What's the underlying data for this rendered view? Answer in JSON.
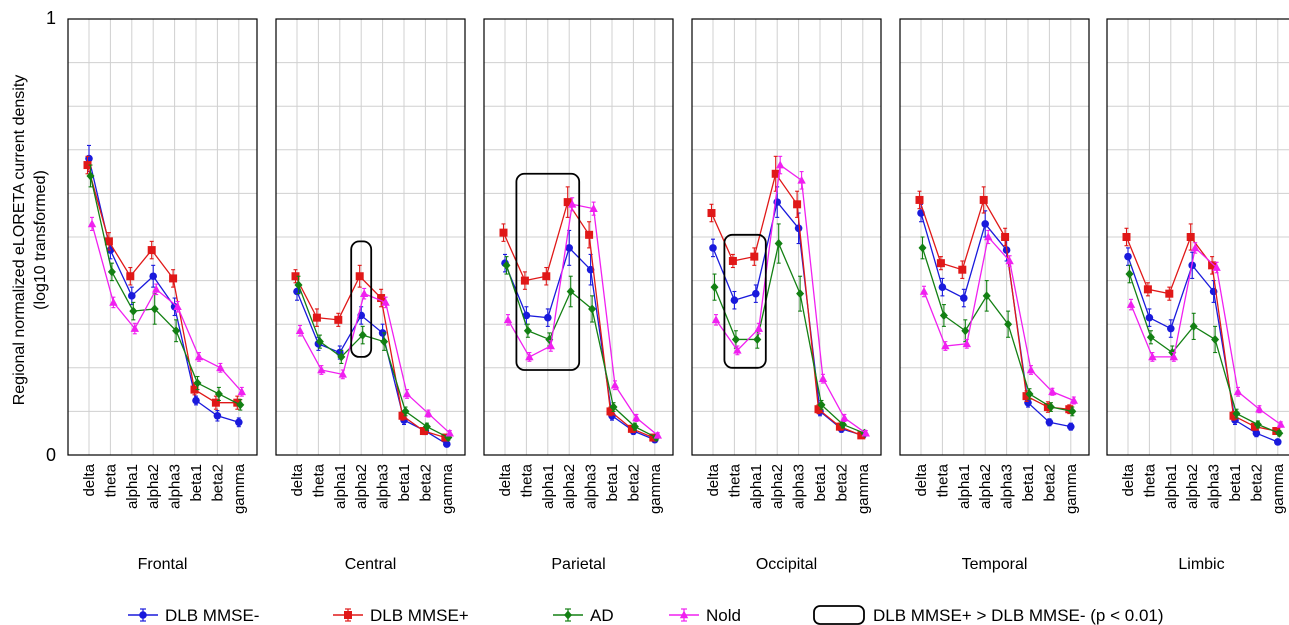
{
  "chart_data": {
    "type": "line",
    "ylabel_line1": "Regional normalized eLORETA current density",
    "ylabel_line2": "(log10 transformed)",
    "ylim": [
      0,
      1
    ],
    "yticks": [
      "0",
      "1"
    ],
    "grid": true,
    "categories": [
      "delta",
      "theta",
      "alpha1",
      "alpha2",
      "alpha3",
      "beta1",
      "beta2",
      "gamma"
    ],
    "legend_placement": "bottom",
    "legend": {
      "box_label": "DLB MMSE+ > DLB MMSE- (p < 0.01)"
    },
    "series_styles": [
      {
        "name": "DLB MMSE-",
        "color": "#1a1adc",
        "marker": "circle"
      },
      {
        "name": "DLB MMSE+",
        "color": "#e01818",
        "marker": "square"
      },
      {
        "name": "AD",
        "color": "#138013",
        "marker": "diamond"
      },
      {
        "name": "Nold",
        "color": "#f020f0",
        "marker": "triangle"
      }
    ],
    "panels": [
      {
        "region": "Frontal",
        "series": [
          {
            "name": "DLB MMSE-",
            "values": [
              0.68,
              0.47,
              0.365,
              0.41,
              0.34,
              0.125,
              0.09,
              0.075
            ],
            "errors": [
              0.03,
              0.02,
              0.02,
              0.025,
              0.02,
              0.01,
              0.012,
              0.01
            ]
          },
          {
            "name": "DLB MMSE+",
            "values": [
              0.665,
              0.49,
              0.41,
              0.47,
              0.405,
              0.15,
              0.12,
              0.12
            ],
            "errors": [
              0.02,
              0.02,
              0.02,
              0.02,
              0.02,
              0.012,
              0.015,
              0.015
            ]
          },
          {
            "name": "AD",
            "values": [
              0.64,
              0.42,
              0.33,
              0.335,
              0.285,
              0.165,
              0.14,
              0.115
            ],
            "errors": [
              0.025,
              0.02,
              0.02,
              0.035,
              0.025,
              0.015,
              0.015,
              0.012
            ]
          },
          {
            "name": "Nold",
            "values": [
              0.53,
              0.35,
              0.29,
              0.38,
              0.34,
              0.225,
              0.2,
              0.145
            ],
            "errors": [
              0.015,
              0.012,
              0.012,
              0.012,
              0.012,
              0.01,
              0.01,
              0.01
            ]
          }
        ]
      },
      {
        "region": "Central",
        "series": [
          {
            "name": "DLB MMSE-",
            "values": [
              0.375,
              0.255,
              0.235,
              0.32,
              0.28,
              0.08,
              0.055,
              0.025
            ],
            "errors": [
              0.02,
              0.015,
              0.015,
              0.02,
              0.02,
              0.01,
              0.008,
              0.006
            ]
          },
          {
            "name": "DLB MMSE+",
            "values": [
              0.41,
              0.315,
              0.31,
              0.41,
              0.36,
              0.09,
              0.055,
              0.04
            ],
            "errors": [
              0.015,
              0.02,
              0.015,
              0.025,
              0.02,
              0.01,
              0.008,
              0.006
            ]
          },
          {
            "name": "AD",
            "values": [
              0.39,
              0.26,
              0.225,
              0.275,
              0.26,
              0.1,
              0.065,
              0.04
            ],
            "errors": [
              0.02,
              0.015,
              0.015,
              0.02,
              0.02,
              0.01,
              0.008,
              0.006
            ]
          },
          {
            "name": "Nold",
            "values": [
              0.285,
              0.195,
              0.185,
              0.37,
              0.35,
              0.14,
              0.095,
              0.05
            ],
            "errors": [
              0.012,
              0.01,
              0.01,
              0.012,
              0.012,
              0.01,
              0.008,
              0.006
            ]
          }
        ]
      },
      {
        "region": "Parietal",
        "series": [
          {
            "name": "DLB MMSE-",
            "values": [
              0.44,
              0.32,
              0.315,
              0.475,
              0.425,
              0.09,
              0.055,
              0.035
            ],
            "errors": [
              0.02,
              0.02,
              0.02,
              0.04,
              0.035,
              0.01,
              0.008,
              0.006
            ]
          },
          {
            "name": "DLB MMSE+",
            "values": [
              0.51,
              0.4,
              0.41,
              0.58,
              0.505,
              0.1,
              0.06,
              0.04
            ],
            "errors": [
              0.02,
              0.02,
              0.02,
              0.035,
              0.03,
              0.01,
              0.008,
              0.006
            ]
          },
          {
            "name": "AD",
            "values": [
              0.435,
              0.285,
              0.265,
              0.375,
              0.335,
              0.11,
              0.065,
              0.04
            ],
            "errors": [
              0.02,
              0.015,
              0.015,
              0.035,
              0.03,
              0.01,
              0.008,
              0.006
            ]
          },
          {
            "name": "Nold",
            "values": [
              0.31,
              0.225,
              0.25,
              0.575,
              0.565,
              0.16,
              0.085,
              0.045
            ],
            "errors": [
              0.012,
              0.01,
              0.012,
              0.015,
              0.015,
              0.01,
              0.008,
              0.006
            ]
          }
        ]
      },
      {
        "region": "Occipital",
        "series": [
          {
            "name": "DLB MMSE-",
            "values": [
              0.475,
              0.355,
              0.37,
              0.58,
              0.52,
              0.1,
              0.06,
              0.045
            ],
            "errors": [
              0.02,
              0.02,
              0.02,
              0.035,
              0.035,
              0.01,
              0.008,
              0.006
            ]
          },
          {
            "name": "DLB MMSE+",
            "values": [
              0.555,
              0.445,
              0.455,
              0.645,
              0.575,
              0.105,
              0.065,
              0.045
            ],
            "errors": [
              0.02,
              0.015,
              0.02,
              0.04,
              0.03,
              0.01,
              0.008,
              0.006
            ]
          },
          {
            "name": "AD",
            "values": [
              0.385,
              0.265,
              0.265,
              0.485,
              0.37,
              0.115,
              0.07,
              0.05
            ],
            "errors": [
              0.03,
              0.02,
              0.02,
              0.045,
              0.04,
              0.01,
              0.008,
              0.006
            ]
          },
          {
            "name": "Nold",
            "values": [
              0.31,
              0.24,
              0.29,
              0.665,
              0.63,
              0.175,
              0.085,
              0.05
            ],
            "errors": [
              0.012,
              0.01,
              0.012,
              0.02,
              0.02,
              0.01,
              0.008,
              0.006
            ]
          }
        ]
      },
      {
        "region": "Temporal",
        "series": [
          {
            "name": "DLB MMSE-",
            "values": [
              0.555,
              0.385,
              0.36,
              0.53,
              0.47,
              0.12,
              0.075,
              0.065
            ],
            "errors": [
              0.02,
              0.02,
              0.02,
              0.03,
              0.025,
              0.01,
              0.008,
              0.008
            ]
          },
          {
            "name": "DLB MMSE+",
            "values": [
              0.585,
              0.44,
              0.425,
              0.585,
              0.5,
              0.135,
              0.11,
              0.105
            ],
            "errors": [
              0.02,
              0.015,
              0.02,
              0.03,
              0.02,
              0.012,
              0.012,
              0.01
            ]
          },
          {
            "name": "AD",
            "values": [
              0.475,
              0.32,
              0.285,
              0.365,
              0.3,
              0.14,
              0.11,
              0.1
            ],
            "errors": [
              0.025,
              0.025,
              0.025,
              0.035,
              0.03,
              0.012,
              0.01,
              0.01
            ]
          },
          {
            "name": "Nold",
            "values": [
              0.375,
              0.25,
              0.255,
              0.5,
              0.445,
              0.195,
              0.145,
              0.125
            ],
            "errors": [
              0.012,
              0.01,
              0.01,
              0.015,
              0.012,
              0.01,
              0.008,
              0.008
            ]
          }
        ]
      },
      {
        "region": "Limbic",
        "series": [
          {
            "name": "DLB MMSE-",
            "values": [
              0.455,
              0.315,
              0.29,
              0.435,
              0.375,
              0.08,
              0.05,
              0.03
            ],
            "errors": [
              0.02,
              0.02,
              0.02,
              0.03,
              0.025,
              0.01,
              0.008,
              0.006
            ]
          },
          {
            "name": "DLB MMSE+",
            "values": [
              0.5,
              0.38,
              0.37,
              0.5,
              0.435,
              0.09,
              0.065,
              0.055
            ],
            "errors": [
              0.02,
              0.015,
              0.015,
              0.03,
              0.02,
              0.01,
              0.008,
              0.006
            ]
          },
          {
            "name": "AD",
            "values": [
              0.415,
              0.27,
              0.235,
              0.295,
              0.265,
              0.095,
              0.07,
              0.05
            ],
            "errors": [
              0.02,
              0.015,
              0.015,
              0.03,
              0.03,
              0.01,
              0.008,
              0.006
            ]
          },
          {
            "name": "Nold",
            "values": [
              0.345,
              0.225,
              0.225,
              0.475,
              0.43,
              0.145,
              0.105,
              0.07
            ],
            "errors": [
              0.012,
              0.01,
              0.01,
              0.012,
              0.012,
              0.01,
              0.008,
              0.006
            ]
          }
        ]
      }
    ],
    "significance_boxes": [
      {
        "region": "Central",
        "from": "alpha2",
        "to": "alpha2",
        "y_range": [
          0.225,
          0.49
        ]
      },
      {
        "region": "Parietal",
        "from": "theta",
        "to": "alpha2",
        "y_range": [
          0.195,
          0.645
        ]
      },
      {
        "region": "Occipital",
        "from": "theta",
        "to": "alpha1",
        "y_range": [
          0.2,
          0.505
        ]
      }
    ]
  }
}
